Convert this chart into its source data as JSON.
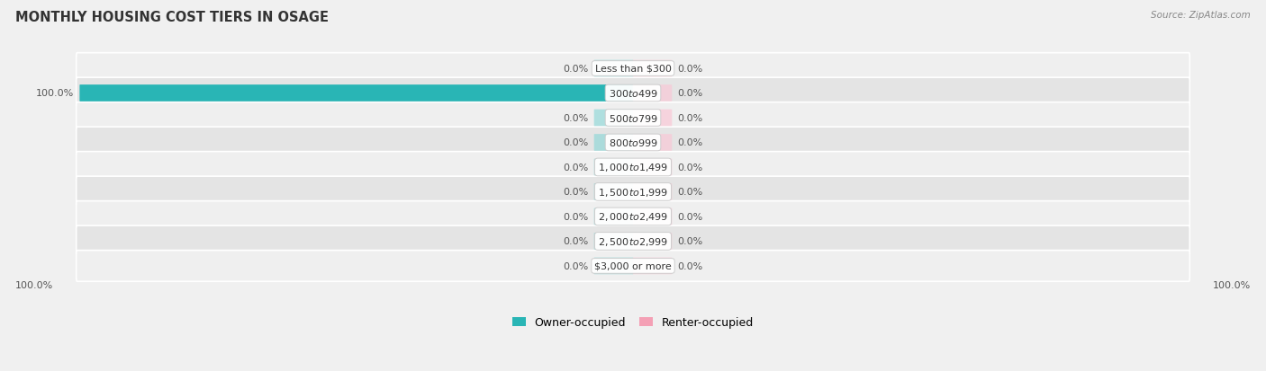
{
  "title": "MONTHLY HOUSING COST TIERS IN OSAGE",
  "source": "Source: ZipAtlas.com",
  "categories": [
    "Less than $300",
    "$300 to $499",
    "$500 to $799",
    "$800 to $999",
    "$1,000 to $1,499",
    "$1,500 to $1,999",
    "$2,000 to $2,499",
    "$2,500 to $2,999",
    "$3,000 or more"
  ],
  "owner_values": [
    0.0,
    100.0,
    0.0,
    0.0,
    0.0,
    0.0,
    0.0,
    0.0,
    0.0
  ],
  "renter_values": [
    0.0,
    0.0,
    0.0,
    0.0,
    0.0,
    0.0,
    0.0,
    0.0,
    0.0
  ],
  "owner_color": "#29b5b5",
  "renter_color": "#f4a0b5",
  "owner_stub_color": "#85d5d5",
  "renter_stub_color": "#f9c8d6",
  "owner_label": "Owner-occupied",
  "renter_label": "Renter-occupied",
  "row_bg_even": "#efefef",
  "row_bg_odd": "#e4e4e4",
  "label_color": "#555555",
  "title_color": "#333333",
  "axis_max": 100.0,
  "stub_size": 7.0,
  "background_color": "#f0f0f0",
  "white": "#ffffff"
}
